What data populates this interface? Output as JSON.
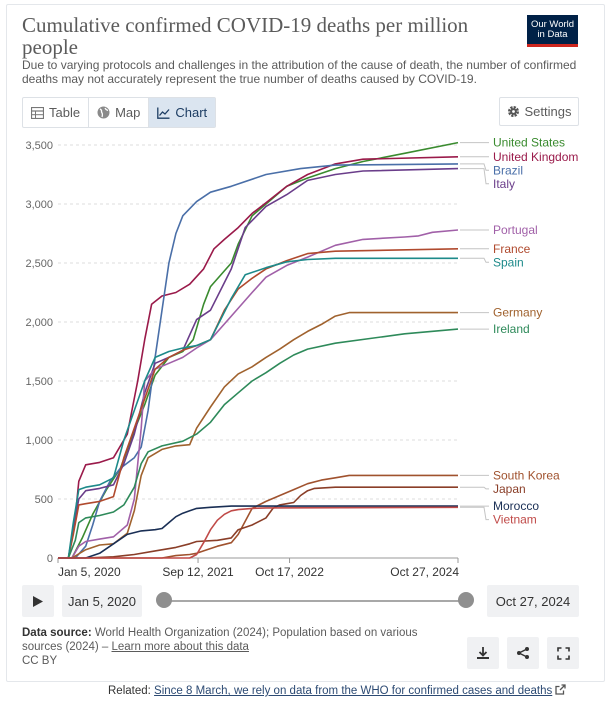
{
  "header": {
    "title": "Cumulative confirmed COVID-19 deaths per million people",
    "subtitle": "Due to varying protocols and challenges in the attribution of the cause of death, the number of confirmed deaths may not accurately represent the true number of deaths caused by COVID-19.",
    "logo_line1": "Our World",
    "logo_line2": "in Data"
  },
  "tabs": [
    {
      "label": "Table",
      "icon": "table-icon"
    },
    {
      "label": "Map",
      "icon": "globe-icon"
    },
    {
      "label": "Chart",
      "icon": "line-chart-icon",
      "active": true
    }
  ],
  "settings_label": "Settings",
  "chart_data": {
    "type": "line",
    "title": "Cumulative confirmed COVID-19 deaths per million people",
    "ylim": [
      0,
      3500
    ],
    "yticks": [
      0,
      500,
      1000,
      1500,
      2000,
      2500,
      3000,
      3500
    ],
    "ytick_labels": [
      "0",
      "500",
      "1,000",
      "1,500",
      "2,000",
      "2,500",
      "3,000",
      "3,500"
    ],
    "xlim_months": [
      0,
      57.7
    ],
    "xticks": [
      {
        "label": "Jan 5, 2020",
        "month": 0
      },
      {
        "label": "Sep 12, 2021",
        "month": 20.2
      },
      {
        "label": "Oct 17, 2022",
        "month": 33.4
      },
      {
        "label": "Oct 27, 2024",
        "month": 57.7
      }
    ],
    "x_unit": "months since Jan 5, 2020",
    "series": [
      {
        "name": "United States",
        "color": "#3a8b2f",
        "points": [
          [
            0,
            0
          ],
          [
            2,
            0
          ],
          [
            3.5,
            170
          ],
          [
            5,
            370
          ],
          [
            7,
            580
          ],
          [
            9,
            760
          ],
          [
            11,
            1080
          ],
          [
            12.5,
            1300
          ],
          [
            14,
            1550
          ],
          [
            16,
            1700
          ],
          [
            18,
            1750
          ],
          [
            19.5,
            1850
          ],
          [
            21,
            2150
          ],
          [
            22,
            2300
          ],
          [
            25,
            2500
          ],
          [
            26,
            2660
          ],
          [
            28,
            2900
          ],
          [
            30,
            3000
          ],
          [
            33,
            3150
          ],
          [
            36,
            3220
          ],
          [
            40,
            3300
          ],
          [
            44,
            3360
          ],
          [
            50,
            3430
          ],
          [
            57.7,
            3520
          ]
        ]
      },
      {
        "name": "United Kingdom",
        "color": "#9a1a4a",
        "points": [
          [
            0,
            0
          ],
          [
            1.5,
            0
          ],
          [
            2.5,
            350
          ],
          [
            3,
            650
          ],
          [
            4,
            790
          ],
          [
            6,
            810
          ],
          [
            8,
            850
          ],
          [
            10,
            1050
          ],
          [
            11.5,
            1500
          ],
          [
            12.5,
            1850
          ],
          [
            13.5,
            2150
          ],
          [
            15,
            2220
          ],
          [
            17,
            2250
          ],
          [
            19,
            2320
          ],
          [
            21,
            2450
          ],
          [
            22.5,
            2620
          ],
          [
            24,
            2700
          ],
          [
            26,
            2800
          ],
          [
            28,
            2920
          ],
          [
            30,
            3010
          ],
          [
            33,
            3150
          ],
          [
            36,
            3250
          ],
          [
            40,
            3340
          ],
          [
            44,
            3380
          ],
          [
            57.7,
            3400
          ]
        ]
      },
      {
        "name": "Brazil",
        "color": "#4a6fa8",
        "points": [
          [
            0,
            0
          ],
          [
            2.5,
            0
          ],
          [
            4,
            100
          ],
          [
            5,
            280
          ],
          [
            6,
            480
          ],
          [
            7.5,
            650
          ],
          [
            9,
            760
          ],
          [
            11,
            850
          ],
          [
            12,
            940
          ],
          [
            13,
            1250
          ],
          [
            14,
            1700
          ],
          [
            15,
            2100
          ],
          [
            16,
            2500
          ],
          [
            17,
            2750
          ],
          [
            18,
            2900
          ],
          [
            20,
            3020
          ],
          [
            22,
            3100
          ],
          [
            25,
            3150
          ],
          [
            30,
            3250
          ],
          [
            35,
            3300
          ],
          [
            40,
            3330
          ],
          [
            57.7,
            3340
          ]
        ]
      },
      {
        "name": "Italy",
        "color": "#6a3d8a",
        "points": [
          [
            0,
            0
          ],
          [
            1.5,
            0
          ],
          [
            2.2,
            250
          ],
          [
            3,
            500
          ],
          [
            4,
            570
          ],
          [
            6,
            590
          ],
          [
            8,
            620
          ],
          [
            9.5,
            800
          ],
          [
            11,
            1050
          ],
          [
            12.5,
            1400
          ],
          [
            14,
            1650
          ],
          [
            16,
            1700
          ],
          [
            18,
            1760
          ],
          [
            20,
            2020
          ],
          [
            22,
            2100
          ],
          [
            25,
            2450
          ],
          [
            27,
            2800
          ],
          [
            30,
            2980
          ],
          [
            33,
            3080
          ],
          [
            36,
            3200
          ],
          [
            40,
            3250
          ],
          [
            44,
            3280
          ],
          [
            57.7,
            3300
          ]
        ]
      },
      {
        "name": "Portugal",
        "color": "#a160a8",
        "points": [
          [
            0,
            0
          ],
          [
            2,
            0
          ],
          [
            3,
            100
          ],
          [
            4,
            140
          ],
          [
            6,
            160
          ],
          [
            8,
            180
          ],
          [
            10,
            280
          ],
          [
            11,
            500
          ],
          [
            12,
            1100
          ],
          [
            12.5,
            1500
          ],
          [
            14,
            1600
          ],
          [
            16,
            1650
          ],
          [
            18,
            1700
          ],
          [
            20,
            1780
          ],
          [
            22,
            1850
          ],
          [
            25,
            2050
          ],
          [
            28,
            2250
          ],
          [
            30,
            2380
          ],
          [
            33,
            2480
          ],
          [
            36,
            2550
          ],
          [
            40,
            2650
          ],
          [
            44,
            2700
          ],
          [
            50,
            2720
          ],
          [
            52,
            2730
          ],
          [
            54,
            2760
          ],
          [
            57.7,
            2780
          ]
        ]
      },
      {
        "name": "France",
        "color": "#b04a2e",
        "points": [
          [
            0,
            0
          ],
          [
            1.5,
            0
          ],
          [
            2.2,
            200
          ],
          [
            3,
            450
          ],
          [
            4,
            460
          ],
          [
            6,
            480
          ],
          [
            8,
            520
          ],
          [
            9.5,
            850
          ],
          [
            11,
            1100
          ],
          [
            12.5,
            1350
          ],
          [
            14,
            1600
          ],
          [
            16,
            1700
          ],
          [
            18,
            1760
          ],
          [
            20,
            1800
          ],
          [
            22,
            1850
          ],
          [
            24,
            2100
          ],
          [
            26,
            2280
          ],
          [
            28,
            2370
          ],
          [
            30,
            2450
          ],
          [
            33,
            2520
          ],
          [
            36,
            2580
          ],
          [
            40,
            2600
          ],
          [
            57.7,
            2620
          ]
        ]
      },
      {
        "name": "Spain",
        "color": "#1d8a8a",
        "points": [
          [
            0,
            0
          ],
          [
            1.5,
            0
          ],
          [
            2.2,
            300
          ],
          [
            3,
            580
          ],
          [
            4,
            600
          ],
          [
            6,
            620
          ],
          [
            8,
            680
          ],
          [
            9.5,
            1000
          ],
          [
            11,
            1250
          ],
          [
            12.5,
            1500
          ],
          [
            14,
            1700
          ],
          [
            16,
            1750
          ],
          [
            18,
            1780
          ],
          [
            20,
            1800
          ],
          [
            22,
            1850
          ],
          [
            25,
            2200
          ],
          [
            27,
            2400
          ],
          [
            30,
            2460
          ],
          [
            33,
            2510
          ],
          [
            36,
            2530
          ],
          [
            40,
            2540
          ],
          [
            57.7,
            2540
          ]
        ]
      },
      {
        "name": "Germany",
        "color": "#a0622e",
        "points": [
          [
            0,
            0
          ],
          [
            2,
            0
          ],
          [
            4,
            70
          ],
          [
            6,
            110
          ],
          [
            8,
            120
          ],
          [
            10,
            210
          ],
          [
            11,
            400
          ],
          [
            12,
            700
          ],
          [
            13,
            850
          ],
          [
            15,
            920
          ],
          [
            17,
            950
          ],
          [
            19,
            960
          ],
          [
            20,
            1100
          ],
          [
            22,
            1280
          ],
          [
            24,
            1450
          ],
          [
            26,
            1560
          ],
          [
            28,
            1620
          ],
          [
            30,
            1700
          ],
          [
            32,
            1770
          ],
          [
            34,
            1850
          ],
          [
            36,
            1920
          ],
          [
            38,
            1980
          ],
          [
            40,
            2050
          ],
          [
            42,
            2080
          ],
          [
            57.7,
            2080
          ]
        ]
      },
      {
        "name": "Ireland",
        "color": "#2e8a5a",
        "points": [
          [
            0,
            0
          ],
          [
            1.5,
            0
          ],
          [
            2.5,
            150
          ],
          [
            3,
            300
          ],
          [
            4,
            340
          ],
          [
            6,
            360
          ],
          [
            8,
            390
          ],
          [
            9.5,
            450
          ],
          [
            11,
            600
          ],
          [
            12,
            800
          ],
          [
            13,
            900
          ],
          [
            15,
            950
          ],
          [
            18,
            990
          ],
          [
            20,
            1050
          ],
          [
            22,
            1150
          ],
          [
            24,
            1300
          ],
          [
            26,
            1400
          ],
          [
            28,
            1500
          ],
          [
            30,
            1570
          ],
          [
            32,
            1650
          ],
          [
            34,
            1720
          ],
          [
            36,
            1770
          ],
          [
            40,
            1820
          ],
          [
            45,
            1860
          ],
          [
            50,
            1900
          ],
          [
            57.7,
            1940
          ]
        ]
      },
      {
        "name": "South Korea",
        "color": "#a0522e",
        "points": [
          [
            0,
            0
          ],
          [
            15,
            0
          ],
          [
            17,
            20
          ],
          [
            19,
            30
          ],
          [
            20,
            40
          ],
          [
            21,
            60
          ],
          [
            23,
            100
          ],
          [
            25,
            130
          ],
          [
            26,
            200
          ],
          [
            28,
            420
          ],
          [
            30,
            480
          ],
          [
            32,
            530
          ],
          [
            34,
            580
          ],
          [
            36,
            630
          ],
          [
            38,
            660
          ],
          [
            40,
            680
          ],
          [
            42,
            700
          ],
          [
            57.7,
            700
          ]
        ]
      },
      {
        "name": "Japan",
        "color": "#8a3e28",
        "points": [
          [
            0,
            0
          ],
          [
            4,
            0
          ],
          [
            6,
            5
          ],
          [
            8,
            10
          ],
          [
            11,
            30
          ],
          [
            14,
            60
          ],
          [
            17,
            90
          ],
          [
            19,
            120
          ],
          [
            20,
            140
          ],
          [
            23,
            150
          ],
          [
            25,
            170
          ],
          [
            26,
            240
          ],
          [
            28,
            280
          ],
          [
            30,
            340
          ],
          [
            31,
            420
          ],
          [
            32,
            450
          ],
          [
            33,
            460
          ],
          [
            34,
            470
          ],
          [
            35,
            530
          ],
          [
            36,
            570
          ],
          [
            37,
            590
          ],
          [
            40,
            600
          ],
          [
            57.7,
            600
          ]
        ]
      },
      {
        "name": "Morocco",
        "color": "#1a2f55",
        "points": [
          [
            0,
            0
          ],
          [
            4,
            0
          ],
          [
            6,
            40
          ],
          [
            8,
            120
          ],
          [
            10,
            200
          ],
          [
            12,
            230
          ],
          [
            14,
            240
          ],
          [
            15,
            250
          ],
          [
            16,
            300
          ],
          [
            17,
            350
          ],
          [
            18,
            380
          ],
          [
            19,
            400
          ],
          [
            20,
            420
          ],
          [
            22,
            430
          ],
          [
            25,
            440
          ],
          [
            28,
            440
          ],
          [
            57.7,
            440
          ]
        ]
      },
      {
        "name": "Vietnam",
        "color": "#c04a48",
        "points": [
          [
            0,
            0
          ],
          [
            19,
            0
          ],
          [
            20,
            30
          ],
          [
            21,
            130
          ],
          [
            22,
            240
          ],
          [
            23,
            320
          ],
          [
            24,
            370
          ],
          [
            25,
            400
          ],
          [
            26,
            410
          ],
          [
            28,
            420
          ],
          [
            30,
            425
          ],
          [
            57.7,
            430
          ]
        ]
      }
    ],
    "legend_placement": "right"
  },
  "controls": {
    "play_icon": "play-icon",
    "start_date": "Jan 5, 2020",
    "end_date": "Oct 27, 2024"
  },
  "footer": {
    "source_label": "Data source:",
    "source_text": "World Health Organization (2024); Population based on various sources (2024) –",
    "learn_more": "Learn more about this data",
    "license": "CC BY",
    "related_label": "Related:",
    "related_link": "Since 8 March, we rely on data from the WHO for confirmed cases and deaths"
  }
}
